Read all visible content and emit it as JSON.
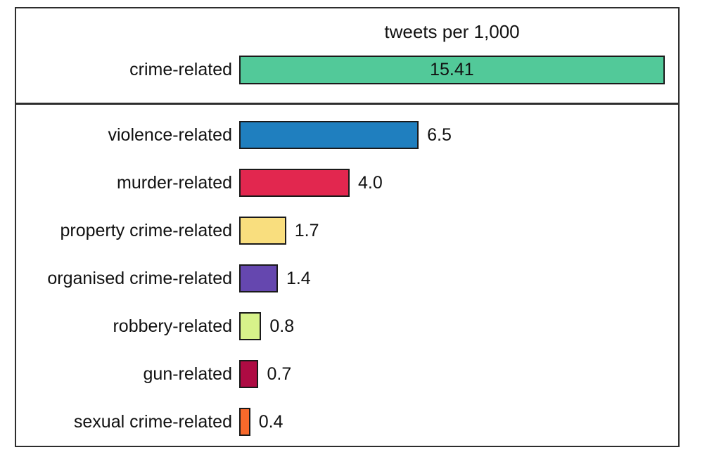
{
  "chart_data": {
    "type": "bar",
    "orientation": "horizontal",
    "title": "tweets per 1,000",
    "axis_visible": false,
    "grid": false,
    "legend": false,
    "xlim": [
      0,
      15.41
    ],
    "categories": [
      "crime-related",
      "violence-related",
      "murder-related",
      "property crime-related",
      "organised crime-related",
      "robbery-related",
      "gun-related",
      "sexual crime-related"
    ],
    "values": [
      15.41,
      6.5,
      4.0,
      1.7,
      1.4,
      0.8,
      0.7,
      0.4
    ],
    "bars": [
      {
        "label": "crime-related",
        "value": 15.41,
        "value_label": "15.41",
        "color": "#52c999",
        "value_position": "inside",
        "section": "top"
      },
      {
        "label": "violence-related",
        "value": 6.5,
        "value_label": "6.5",
        "color": "#1f7fbf",
        "value_position": "outside",
        "section": "bottom"
      },
      {
        "label": "murder-related",
        "value": 4.0,
        "value_label": "4.0",
        "color": "#e2274f",
        "value_position": "outside",
        "section": "bottom"
      },
      {
        "label": "property crime-related",
        "value": 1.7,
        "value_label": "1.7",
        "color": "#f9de7e",
        "value_position": "outside",
        "section": "bottom"
      },
      {
        "label": "organised crime-related",
        "value": 1.4,
        "value_label": "1.4",
        "color": "#6547af",
        "value_position": "outside",
        "section": "bottom"
      },
      {
        "label": "robbery-related",
        "value": 0.8,
        "value_label": "0.8",
        "color": "#d7f28a",
        "value_position": "outside",
        "section": "bottom"
      },
      {
        "label": "gun-related",
        "value": 0.7,
        "value_label": "0.7",
        "color": "#ae0b43",
        "value_position": "outside",
        "section": "bottom"
      },
      {
        "label": "sexual crime-related",
        "value": 0.4,
        "value_label": "0.4",
        "color": "#f7692b",
        "value_position": "outside",
        "section": "bottom"
      }
    ],
    "colors": {
      "frame_border": "#2d2d2d",
      "bar_border": "#1a1a1a",
      "text": "#111111",
      "background": "#ffffff",
      "crime_teal": "#52c999",
      "violence_blue": "#1f7fbf",
      "murder_red": "#e2274f",
      "property_yellow": "#f9de7e",
      "organised_purple": "#6547af",
      "robbery_green": "#d7f28a",
      "gun_maroon": "#ae0b43",
      "sexual_orange": "#f7692b"
    }
  }
}
